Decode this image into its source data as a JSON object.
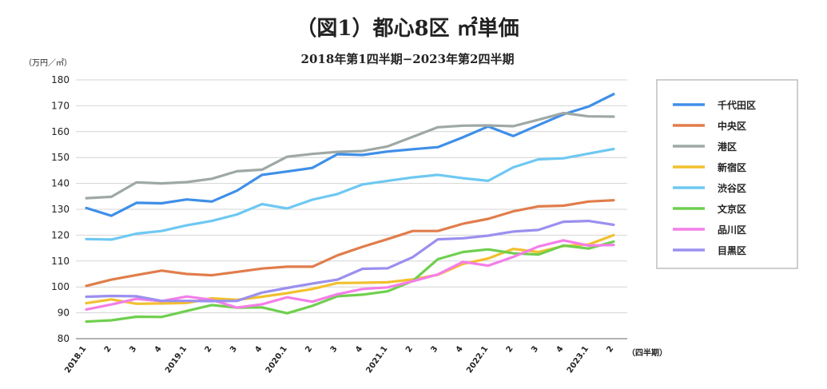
{
  "chart_data": {
    "type": "line",
    "title": "（図1）都心8区 ㎡単価",
    "subtitle": "2018年第1四半期−2023年第2四半期",
    "ylabel": "（万円／㎡）",
    "xlabel": "（四半期）",
    "ylim": [
      80,
      180
    ],
    "yticks": [
      80,
      90,
      100,
      110,
      120,
      130,
      140,
      150,
      160,
      170,
      180
    ],
    "grid": true,
    "legend_position": "right",
    "categories": [
      "2018.1",
      "2",
      "3",
      "4",
      "2019.1",
      "2",
      "3",
      "4",
      "2020.1",
      "2",
      "3",
      "4",
      "2021.1",
      "2",
      "3",
      "4",
      "2022.1",
      "2",
      "3",
      "4",
      "2023.1",
      "2"
    ],
    "series": [
      {
        "name": "千代田区",
        "color": "#3f8fe8",
        "values": [
          130.5,
          127.5,
          132.5,
          132.3,
          133.8,
          133.0,
          137.2,
          143.3,
          144.6,
          146.0,
          151.3,
          151.0,
          152.3,
          153.2,
          154.0,
          157.8,
          162.0,
          158.3,
          162.5,
          166.7,
          169.7,
          174.5
        ]
      },
      {
        "name": "中央区",
        "color": "#e07d4b",
        "values": [
          100.4,
          102.8,
          104.6,
          106.3,
          105.0,
          104.5,
          105.8,
          107.1,
          107.8,
          107.8,
          112.2,
          115.5,
          118.5,
          121.6,
          121.6,
          124.4,
          126.3,
          129.2,
          131.1,
          131.4,
          133.0,
          133.5
        ]
      },
      {
        "name": "港区",
        "color": "#9ea8a5",
        "values": [
          134.3,
          134.8,
          140.4,
          140.0,
          140.5,
          141.8,
          144.7,
          145.3,
          150.3,
          151.4,
          152.2,
          152.5,
          154.3,
          158.0,
          161.7,
          162.3,
          162.4,
          162.1,
          164.6,
          167.2,
          165.9,
          165.8
        ]
      },
      {
        "name": "新宿区",
        "color": "#f2c02f",
        "values": [
          93.7,
          95.2,
          93.5,
          93.6,
          93.8,
          95.6,
          95.0,
          96.2,
          97.6,
          99.2,
          101.5,
          101.6,
          101.8,
          102.9,
          104.7,
          108.9,
          111.0,
          114.7,
          113.5,
          115.8,
          116.4,
          120.0
        ]
      },
      {
        "name": "渋谷区",
        "color": "#6ec8f2",
        "values": [
          118.5,
          118.3,
          120.6,
          121.6,
          123.8,
          125.5,
          128.0,
          132.0,
          130.3,
          133.7,
          135.9,
          139.6,
          141.0,
          142.3,
          143.3,
          142.0,
          141.0,
          146.2,
          149.3,
          149.7,
          151.5,
          153.3
        ]
      },
      {
        "name": "文京区",
        "color": "#6fcf4f",
        "values": [
          86.6,
          87.1,
          88.5,
          88.4,
          90.7,
          93.0,
          92.0,
          92.1,
          89.8,
          92.7,
          96.4,
          97.0,
          98.3,
          102.3,
          110.7,
          113.5,
          114.5,
          113.0,
          112.5,
          116.0,
          114.8,
          117.5
        ]
      },
      {
        "name": "品川区",
        "color": "#f47ee8",
        "values": [
          91.3,
          93.2,
          95.4,
          94.5,
          96.3,
          95.0,
          92.0,
          93.3,
          96.0,
          94.3,
          97.2,
          99.2,
          99.8,
          102.2,
          104.8,
          109.7,
          108.2,
          111.6,
          115.6,
          118.0,
          116.0,
          116.2
        ]
      },
      {
        "name": "目黒区",
        "color": "#9b8fef",
        "values": [
          96.2,
          96.5,
          96.4,
          94.6,
          94.6,
          94.5,
          94.6,
          97.8,
          99.6,
          101.3,
          102.8,
          107.0,
          107.2,
          111.5,
          118.4,
          118.8,
          119.8,
          121.4,
          122.0,
          125.2,
          125.5,
          124.0
        ]
      }
    ]
  }
}
